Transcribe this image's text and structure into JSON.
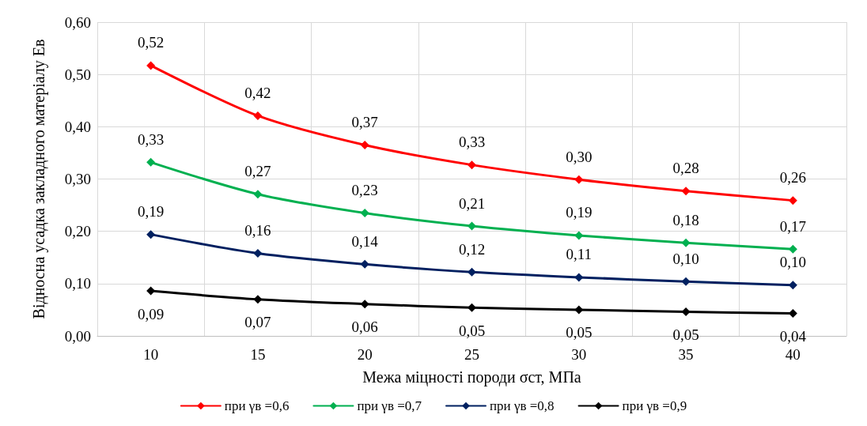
{
  "chart_data": {
    "type": "line",
    "xlabel": "Межа міцності породи σст, МПа",
    "ylabel": "Відносна усадка закладного матеріалу Ев",
    "categories": [
      "10",
      "15",
      "20",
      "25",
      "30",
      "35",
      "40"
    ],
    "series": [
      {
        "name": "при γв =0,6",
        "color": "#ff0000",
        "values": [
          0.517,
          0.421,
          0.365,
          0.327,
          0.299,
          0.277,
          0.259
        ],
        "value_labels": [
          "0,52",
          "0,42",
          "0,37",
          "0,33",
          "0,30",
          "0,28",
          "0,26"
        ]
      },
      {
        "name": "при γв =0,7",
        "color": "#00b050",
        "values": [
          0.332,
          0.271,
          0.235,
          0.21,
          0.192,
          0.178,
          0.166
        ],
        "value_labels": [
          "0,33",
          "0,27",
          "0,23",
          "0,21",
          "0,19",
          "0,18",
          "0,17"
        ]
      },
      {
        "name": "при γв =0,8",
        "color": "#002060",
        "values": [
          0.194,
          0.158,
          0.137,
          0.122,
          0.112,
          0.104,
          0.097
        ],
        "value_labels": [
          "0,19",
          "0,16",
          "0,14",
          "0,12",
          "0,11",
          "0,10",
          "0,10"
        ]
      },
      {
        "name": "при γв =0,9",
        "color": "#000000",
        "values": [
          0.086,
          0.07,
          0.061,
          0.054,
          0.05,
          0.046,
          0.043
        ],
        "value_labels": [
          "0,09",
          "0,07",
          "0,06",
          "0,05",
          "0,05",
          "0,05",
          "0,04"
        ]
      }
    ],
    "ylim": [
      0,
      0.6
    ],
    "yticks": [
      {
        "value": 0,
        "label": "0,00"
      },
      {
        "value": 0.1,
        "label": "0,10"
      },
      {
        "value": 0.2,
        "label": "0,20"
      },
      {
        "value": 0.3,
        "label": "0,30"
      },
      {
        "value": 0.4,
        "label": "0,40"
      },
      {
        "value": 0.5,
        "label": "0,50"
      },
      {
        "value": 0.6,
        "label": "0,60"
      }
    ],
    "grid": true,
    "legend": "bottom",
    "marker": "diamond",
    "line_style": "solid"
  }
}
